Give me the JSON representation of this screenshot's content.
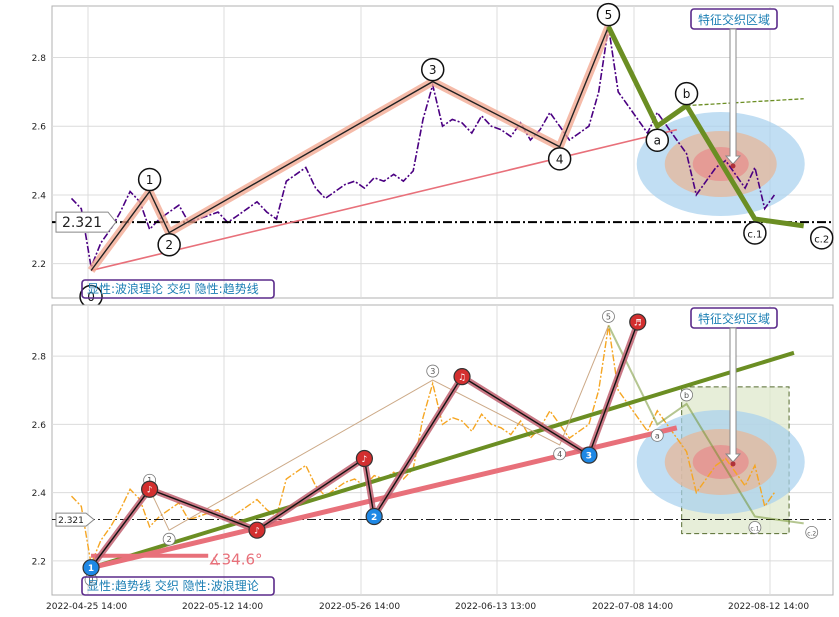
{
  "chart_data": [
    {
      "type": "line",
      "panel": "top",
      "ylim": [
        2.1,
        2.95
      ],
      "y_ticks": [
        2.2,
        2.4,
        2.6,
        2.8
      ],
      "y_tick_labels": [
        "2.2",
        "2.4",
        "2.6",
        "2.8"
      ],
      "grid": true,
      "series": [
        {
          "style": "dash-dot purple",
          "color": "#4b0082",
          "x": [
            0,
            1,
            2,
            3,
            4,
            5,
            6,
            7,
            8,
            9,
            10,
            11,
            12,
            13,
            14,
            15,
            16,
            17,
            18,
            19,
            20,
            21,
            22,
            23,
            24,
            25,
            26,
            27,
            28,
            29,
            30,
            31,
            32,
            33,
            34,
            35,
            36,
            37,
            38,
            39,
            40,
            41,
            42,
            43,
            44,
            45,
            46,
            47,
            48,
            49,
            50,
            51,
            52,
            53,
            54,
            55,
            56,
            57,
            58,
            59,
            60,
            61,
            62,
            63,
            64,
            65,
            66,
            67,
            68,
            69,
            70,
            71,
            72
          ],
          "y": [
            2.39,
            2.36,
            2.19,
            2.26,
            2.3,
            2.35,
            2.41,
            2.38,
            2.3,
            2.33,
            2.35,
            2.37,
            2.32,
            2.33,
            2.34,
            2.35,
            2.32,
            2.34,
            2.36,
            2.38,
            2.35,
            2.33,
            2.44,
            2.46,
            2.48,
            2.42,
            2.39,
            2.41,
            2.43,
            2.44,
            2.42,
            2.45,
            2.44,
            2.46,
            2.44,
            2.47,
            2.62,
            2.72,
            2.6,
            2.62,
            2.61,
            2.58,
            2.63,
            2.6,
            2.59,
            2.57,
            2.61,
            2.56,
            2.59,
            2.64,
            2.6,
            2.56,
            2.58,
            2.6,
            2.7,
            2.89,
            2.7,
            2.66,
            2.62,
            2.58,
            2.64,
            2.6,
            2.56,
            2.52,
            2.4,
            2.44,
            2.48,
            2.5,
            2.46,
            2.42,
            2.48,
            2.36,
            2.4
          ]
        }
      ],
      "wave_points": [
        {
          "label": "0",
          "x": 2,
          "y": 2.18
        },
        {
          "label": "1",
          "x": 8,
          "y": 2.41
        },
        {
          "label": "2",
          "x": 10,
          "y": 2.29
        },
        {
          "label": "3",
          "x": 37,
          "y": 2.73
        },
        {
          "label": "4",
          "x": 50,
          "y": 2.54
        },
        {
          "label": "5",
          "x": 55,
          "y": 2.89
        },
        {
          "label": "a",
          "x": 60,
          "y": 2.6
        },
        {
          "label": "b",
          "x": 63,
          "y": 2.66
        },
        {
          "label": "c.1",
          "x": 70,
          "y": 2.33
        },
        {
          "label": "c.2",
          "x": 75,
          "y": 2.31
        }
      ],
      "level": 2.321,
      "level_label": "2.321",
      "box_label": "显性:波浪理论 交织 隐性:趋势线",
      "annotation": "特征交织区域"
    },
    {
      "type": "line",
      "panel": "bottom",
      "ylim": [
        2.1,
        2.95
      ],
      "y_ticks": [
        2.2,
        2.4,
        2.6,
        2.8
      ],
      "y_tick_labels": [
        "2.2",
        "2.4",
        "2.6",
        "2.8"
      ],
      "grid": true,
      "x_tick_labels": [
        "2022-04-25 14:00",
        "2022-05-12 14:00",
        "2022-05-26 14:00",
        "2022-06-13 13:00",
        "2022-07-08 14:00",
        "2022-08-12 14:00"
      ],
      "series": [
        {
          "style": "dash-dot orange",
          "color": "#f5a623",
          "x": [
            0,
            1,
            2,
            3,
            4,
            5,
            6,
            7,
            8,
            9,
            10,
            11,
            12,
            13,
            14,
            15,
            16,
            17,
            18,
            19,
            20,
            21,
            22,
            23,
            24,
            25,
            26,
            27,
            28,
            29,
            30,
            31,
            32,
            33,
            34,
            35,
            36,
            37,
            38,
            39,
            40,
            41,
            42,
            43,
            44,
            45,
            46,
            47,
            48,
            49,
            50,
            51,
            52,
            53,
            54,
            55,
            56,
            57,
            58,
            59,
            60,
            61,
            62,
            63,
            64,
            65,
            66,
            67,
            68,
            69,
            70,
            71,
            72
          ],
          "y": [
            2.39,
            2.36,
            2.19,
            2.26,
            2.3,
            2.35,
            2.41,
            2.38,
            2.3,
            2.33,
            2.35,
            2.37,
            2.32,
            2.33,
            2.34,
            2.35,
            2.32,
            2.34,
            2.36,
            2.38,
            2.35,
            2.33,
            2.44,
            2.46,
            2.48,
            2.42,
            2.39,
            2.41,
            2.43,
            2.44,
            2.42,
            2.45,
            2.44,
            2.46,
            2.44,
            2.47,
            2.62,
            2.72,
            2.6,
            2.62,
            2.61,
            2.58,
            2.63,
            2.6,
            2.59,
            2.57,
            2.61,
            2.56,
            2.59,
            2.64,
            2.6,
            2.56,
            2.58,
            2.6,
            2.7,
            2.89,
            2.7,
            2.66,
            2.62,
            2.58,
            2.64,
            2.6,
            2.56,
            2.52,
            2.4,
            2.44,
            2.48,
            2.5,
            2.46,
            2.42,
            2.48,
            2.36,
            2.4
          ]
        }
      ],
      "wave_points": [
        {
          "label": "0",
          "x": 2,
          "y": 2.18
        },
        {
          "label": "1",
          "x": 8,
          "y": 2.41
        },
        {
          "label": "2",
          "x": 10,
          "y": 2.29
        },
        {
          "label": "3",
          "x": 37,
          "y": 2.73
        },
        {
          "label": "4",
          "x": 50,
          "y": 2.54
        },
        {
          "label": "5",
          "x": 55,
          "y": 2.89
        },
        {
          "label": "a",
          "x": 60,
          "y": 2.6
        },
        {
          "label": "b",
          "x": 63,
          "y": 2.66
        },
        {
          "label": "c.1",
          "x": 70,
          "y": 2.33
        },
        {
          "label": "c.2",
          "x": 75,
          "y": 2.31
        }
      ],
      "trend_markers": [
        {
          "label": "1",
          "x": 2,
          "y": 2.18,
          "kind": "low"
        },
        {
          "label": "♪",
          "x": 8,
          "y": 2.41,
          "kind": "high"
        },
        {
          "label": "♪",
          "x": 19,
          "y": 2.29,
          "kind": "high"
        },
        {
          "label": "♪",
          "x": 30,
          "y": 2.5,
          "kind": "high"
        },
        {
          "label": "2",
          "x": 31,
          "y": 2.33,
          "kind": "low"
        },
        {
          "label": "♫",
          "x": 40,
          "y": 2.74,
          "kind": "high"
        },
        {
          "label": "3",
          "x": 53,
          "y": 2.51,
          "kind": "low"
        },
        {
          "label": "♬",
          "x": 58,
          "y": 2.9,
          "kind": "high"
        }
      ],
      "level": 2.321,
      "level_label": "2.321",
      "angle_label": "∡34.6°",
      "box_label": "显性:趋势线 交织 隐性:波浪理论",
      "annotation": "特征交织区域"
    }
  ]
}
